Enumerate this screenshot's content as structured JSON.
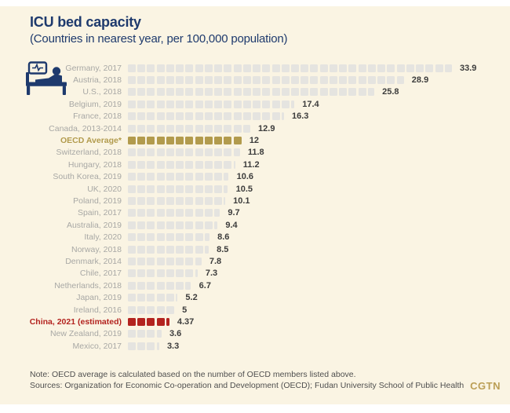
{
  "header": {
    "title": "ICU bed capacity",
    "subtitle": "(Countries in nearest year, per 100,000 population)"
  },
  "footer": {
    "note": "Note: OECD average is calculated based on the number of OECD members listed above.",
    "sources": "Sources: Organization for Economic Co-operation and Development (OECD); Fudan University School of Public Health",
    "logo": "CGTN"
  },
  "icons": {
    "bed": "hospital-bed-icon"
  },
  "colors": {
    "panel_background": "#faf4e3",
    "navy_title": "#1e3a6d",
    "square_default": "#e5e4e0",
    "highlight_gold": "#b29b4d",
    "highlight_red": "#b3231f",
    "label_gray": "#a8a8a5",
    "value_text": "#3c3c3c",
    "note_text": "#4f4f4f",
    "logo_gold": "#bb9e55"
  },
  "chart_data": {
    "type": "bar",
    "orientation": "horizontal",
    "title": "ICU bed capacity",
    "subtitle": "(Countries in nearest year, per 100,000 population)",
    "unit_per_square": 1,
    "xlim": [
      0,
      34
    ],
    "grid": false,
    "legend": false,
    "categories": [
      "Germany, 2017",
      "Austria, 2018",
      "U.S., 2018",
      "Belgium, 2019",
      "France, 2018",
      "Canada, 2013-2014",
      "OECD Average*",
      "Switzerland, 2018",
      "Hungary, 2018",
      "South Korea, 2019",
      "UK, 2020",
      "Poland, 2019",
      "Spain, 2017",
      "Australia, 2019",
      "Italy, 2020",
      "Norway, 2018",
      "Denmark, 2014",
      "Chile, 2017",
      "Netherlands, 2018",
      "Japan, 2019",
      "Ireland, 2016",
      "China, 2021 (estimated)",
      "New Zealand, 2019",
      "Mexico, 2017"
    ],
    "values": [
      33.9,
      28.9,
      25.8,
      17.4,
      16.3,
      12.9,
      12,
      11.8,
      11.2,
      10.6,
      10.5,
      10.1,
      9.7,
      9.4,
      8.6,
      8.5,
      7.8,
      7.3,
      6.7,
      5.2,
      5,
      4.37,
      3.6,
      3.3
    ],
    "display_values": [
      "33.9",
      "28.9",
      "25.8",
      "17.4",
      "16.3",
      "12.9",
      "12",
      "11.8",
      "11.2",
      "10.6",
      "10.5",
      "10.1",
      "9.7",
      "9.4",
      "8.6",
      "8.5",
      "7.8",
      "7.3",
      "6.7",
      "5.2",
      "5",
      "4.37",
      "3.6",
      "3.3"
    ],
    "styles": [
      "default",
      "default",
      "default",
      "default",
      "default",
      "default",
      "gold",
      "default",
      "default",
      "default",
      "default",
      "default",
      "default",
      "default",
      "default",
      "default",
      "default",
      "default",
      "default",
      "default",
      "default",
      "red",
      "default",
      "default"
    ]
  }
}
